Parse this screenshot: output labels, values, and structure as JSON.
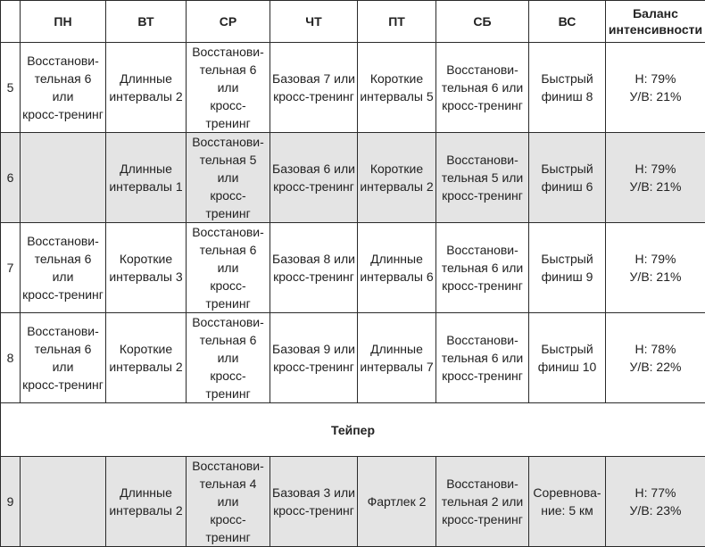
{
  "header": [
    "",
    "ПН",
    "ВТ",
    "СР",
    "ЧТ",
    "ПТ",
    "СБ",
    "ВС",
    "Баланс\nинтенсивности"
  ],
  "weeks_before_taper": [
    {
      "week": "5",
      "shaded": false,
      "cells": [
        "Восстанови-\nтельная 6 или\nкросс-тренинг",
        "Длинные\nинтервалы 2",
        "Восстанови-\nтельная 6 или\nкросс-тренинг",
        "Базовая 7 или\nкросс-тренинг",
        "Короткие\nинтервалы 5",
        "Восстанови-\nтельная 6 или\nкросс-тренинг",
        "Быстрый\nфиниш 8",
        "Н: 79%\nУ/В: 21%"
      ]
    },
    {
      "week": "6",
      "shaded": true,
      "cells": [
        "",
        "Длинные\nинтервалы 1",
        "Восстанови-\nтельная 5 или\nкросс-тренинг",
        "Базовая 6 или\nкросс-тренинг",
        "Короткие\nинтервалы 2",
        "Восстанови-\nтельная 5 или\nкросс-тренинг",
        "Быстрый\nфиниш 6",
        "Н: 79%\nУ/В: 21%"
      ]
    },
    {
      "week": "7",
      "shaded": false,
      "cells": [
        "Восстанови-\nтельная 6 или\nкросс-тренинг",
        "Короткие\nинтервалы 3",
        "Восстанови-\nтельная 6 или\nкросс-тренинг",
        "Базовая 8 или\nкросс-тренинг",
        "Длинные\nинтервалы 6",
        "Восстанови-\nтельная 6 или\nкросс-тренинг",
        "Быстрый\nфиниш 9",
        "Н: 79%\nУ/В: 21%"
      ]
    },
    {
      "week": "8",
      "shaded": false,
      "cells": [
        "Восстанови-\nтельная 6 или\nкросс-тренинг",
        "Короткие\nинтервалы 2",
        "Восстанови-\nтельная 6 или\nкросс-тренинг",
        "Базовая 9 или\nкросс-тренинг",
        "Длинные\nинтервалы 7",
        "Восстанови-\nтельная 6 или\nкросс-тренинг",
        "Быстрый\nфиниш 10",
        "Н: 78%\nУ/В: 22%"
      ]
    }
  ],
  "taper_label": "Тейпер",
  "week_after_taper": {
    "week": "9",
    "shaded": true,
    "cells": [
      "",
      "Длинные\nинтервалы 2",
      "Восстанови-\nтельная 4 или\nкросс-тренинг",
      "Базовая 3 или\nкросс-тренинг",
      "Фартлек 2",
      "Восстанови-\nтельная 2 или\nкросс-тренинг",
      "Соревнова-\nние: 5 км",
      "Н: 77%\nУ/В: 23%"
    ]
  }
}
